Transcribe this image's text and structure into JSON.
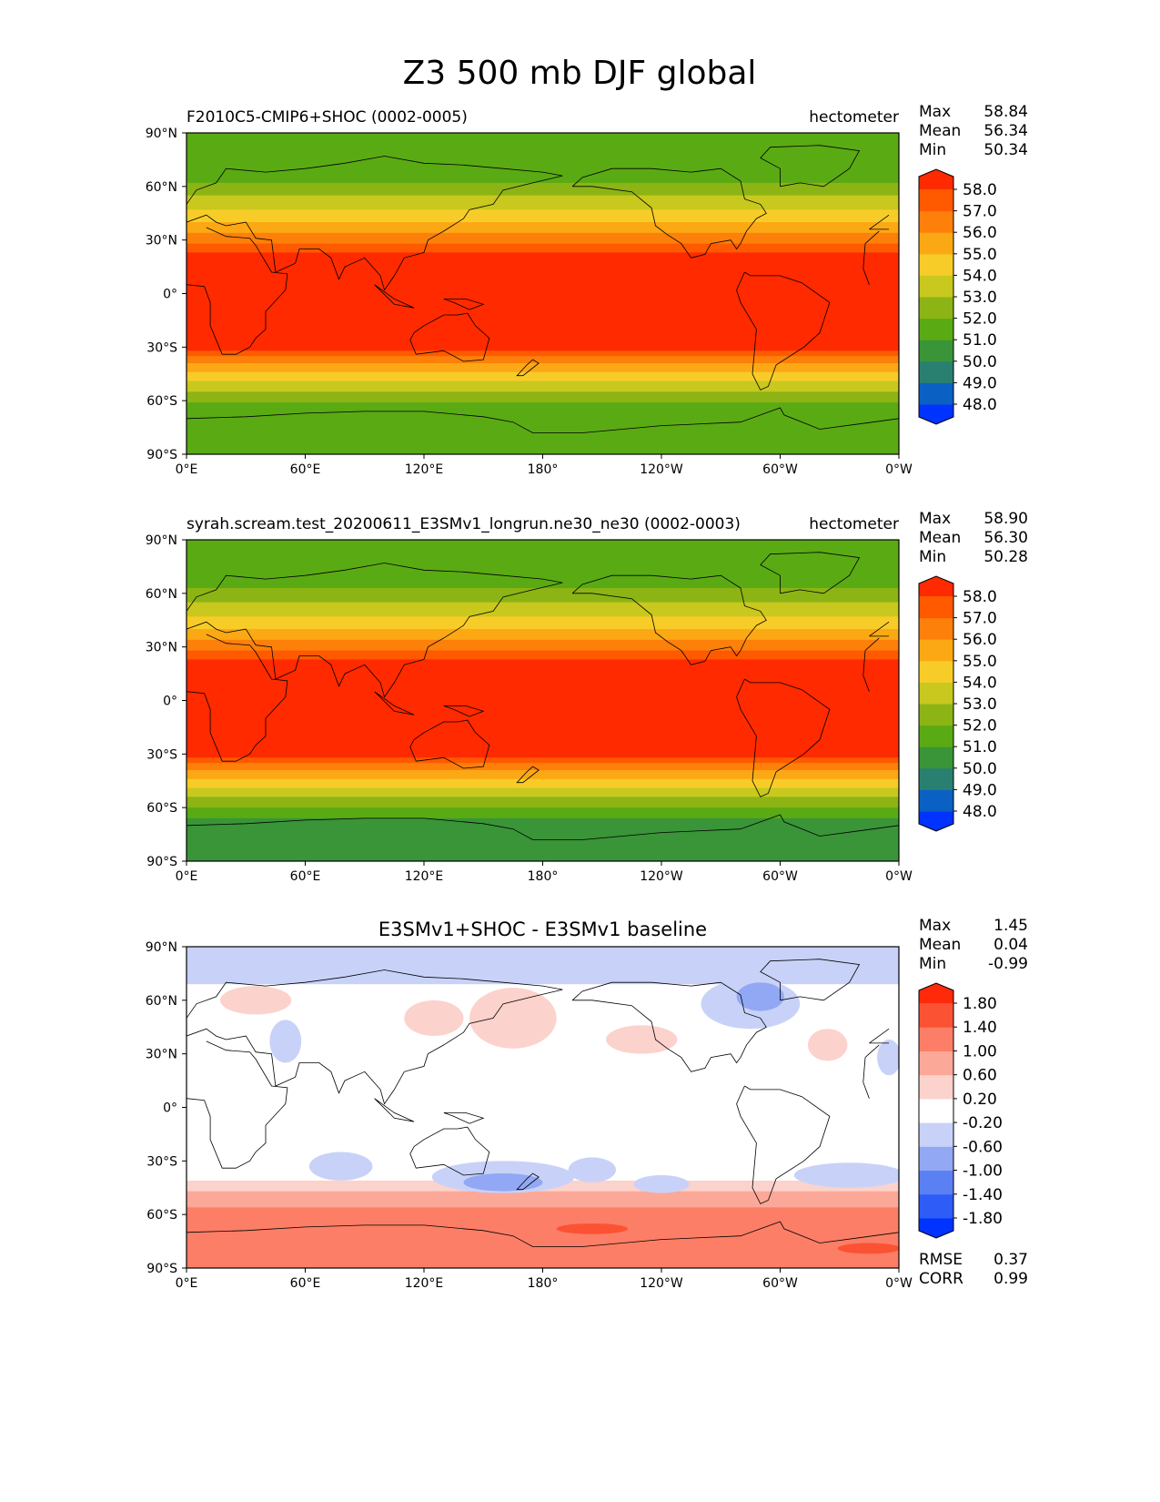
{
  "figure": {
    "title": "Z3 500 mb DJF global"
  },
  "chart_data": [
    {
      "type": "heatmap",
      "title": "F2010C5-CMIP6+SHOC (0002-0005)",
      "units": "hectometer",
      "stats": [
        {
          "label": "Max",
          "value": "58.84"
        },
        {
          "label": "Mean",
          "value": "56.34"
        },
        {
          "label": "Min",
          "value": "50.34"
        }
      ],
      "colorbar": {
        "ticks": [
          "48.0",
          "49.0",
          "50.0",
          "51.0",
          "52.0",
          "53.0",
          "54.0",
          "55.0",
          "56.0",
          "57.0",
          "58.0"
        ],
        "colors": [
          "#0033ff",
          "#0b60c4",
          "#2a8070",
          "#3a9438",
          "#5aaa14",
          "#8cb414",
          "#c8c81e",
          "#f8cc28",
          "#fca814",
          "#fc800a",
          "#ff5a00",
          "#ff2a00"
        ],
        "extend": "both"
      },
      "xticks": [
        "0°E",
        "60°E",
        "120°E",
        "180°",
        "120°W",
        "60°W",
        "0°W"
      ],
      "yticks": [
        "90°N",
        "60°N",
        "30°N",
        "0°",
        "30°S",
        "60°S",
        "90°S"
      ],
      "xlim": [
        0,
        360
      ],
      "ylim": [
        -90,
        90
      ],
      "profile": {
        "lat": [
          90,
          80,
          70,
          62,
          55,
          48,
          42,
          35,
          28,
          20,
          0,
          -20,
          -30,
          -35,
          -40,
          -45,
          -50,
          -55,
          -60,
          -65,
          -72,
          -80,
          -90
        ],
        "level": [
          4,
          4,
          3.8,
          4.5,
          5.5,
          6.3,
          7.2,
          8.3,
          9.5,
          11,
          11,
          11,
          11,
          9.5,
          8.3,
          7.2,
          6.2,
          5.5,
          4.6,
          3.8,
          4,
          4,
          4
        ]
      }
    },
    {
      "type": "heatmap",
      "title": "syrah.scream.test_20200611_E3SMv1_longrun.ne30_ne30 (0002-0003)",
      "units": "hectometer",
      "stats": [
        {
          "label": "Max",
          "value": "58.90"
        },
        {
          "label": "Mean",
          "value": "56.30"
        },
        {
          "label": "Min",
          "value": "50.28"
        }
      ],
      "colorbar": {
        "ticks": [
          "48.0",
          "49.0",
          "50.0",
          "51.0",
          "52.0",
          "53.0",
          "54.0",
          "55.0",
          "56.0",
          "57.0",
          "58.0"
        ],
        "colors": [
          "#0033ff",
          "#0b60c4",
          "#2a8070",
          "#3a9438",
          "#5aaa14",
          "#8cb414",
          "#c8c81e",
          "#f8cc28",
          "#fca814",
          "#fc800a",
          "#ff5a00",
          "#ff2a00"
        ],
        "extend": "both"
      },
      "xticks": [
        "0°E",
        "60°E",
        "120°E",
        "180°",
        "120°W",
        "60°W",
        "0°W"
      ],
      "yticks": [
        "90°N",
        "60°N",
        "30°N",
        "0°",
        "30°S",
        "60°S",
        "90°S"
      ],
      "xlim": [
        0,
        360
      ],
      "ylim": [
        -90,
        90
      ],
      "profile": {
        "lat": [
          90,
          80,
          70,
          62,
          55,
          48,
          42,
          35,
          28,
          20,
          0,
          -20,
          -30,
          -35,
          -40,
          -45,
          -50,
          -55,
          -60,
          -65,
          -72,
          -80,
          -90
        ],
        "level": [
          4.2,
          4.2,
          4,
          4.6,
          5.5,
          6.3,
          7.2,
          8.3,
          9.5,
          11,
          11,
          11,
          11,
          9.5,
          8.3,
          7.2,
          6.2,
          5.4,
          4.4,
          3.6,
          3,
          3,
          3
        ]
      }
    },
    {
      "type": "heatmap",
      "title": "E3SMv1+SHOC - E3SMv1 baseline",
      "units": "",
      "stats": [
        {
          "label": "Max",
          "value": "1.45"
        },
        {
          "label": "Mean",
          "value": "0.04"
        },
        {
          "label": "Min",
          "value": "-0.99"
        }
      ],
      "bottom_stats": [
        {
          "label": "RMSE",
          "value": "0.37"
        },
        {
          "label": "CORR",
          "value": "0.99"
        }
      ],
      "colorbar": {
        "ticks": [
          "-1.80",
          "-1.40",
          "-1.00",
          "-0.60",
          "-0.20",
          "0.20",
          "0.60",
          "1.00",
          "1.40",
          "1.80"
        ],
        "colors": [
          "#0033ff",
          "#2d5cf6",
          "#5a80f4",
          "#92a8f4",
          "#c8d2f8",
          "#ffffff",
          "#fcd2cc",
          "#fca898",
          "#fc7e66",
          "#fc5234",
          "#ff2a0a"
        ],
        "extend": "both"
      },
      "xticks": [
        "0°E",
        "60°E",
        "120°E",
        "180°",
        "120°W",
        "60°W",
        "0°W"
      ],
      "yticks": [
        "90°N",
        "60°N",
        "30°N",
        "0°",
        "30°S",
        "60°S",
        "90°S"
      ],
      "xlim": [
        0,
        360
      ],
      "ylim": [
        -90,
        90
      ],
      "profile": {
        "lat": [
          90,
          84,
          78,
          73,
          68,
          62,
          40,
          -30,
          -36,
          -41,
          -45,
          -50,
          -57,
          -62,
          -90
        ],
        "level": [
          4,
          4,
          4,
          4,
          4.6,
          5,
          5,
          5,
          5,
          5.5,
          6,
          7,
          7.6,
          8,
          8
        ]
      },
      "blobs": [
        {
          "lon": 35,
          "lat": 60,
          "rlon": 18,
          "rlat": 8,
          "level": 6
        },
        {
          "lon": 50,
          "lat": 37,
          "rlon": 8,
          "rlat": 12,
          "level": 4
        },
        {
          "lon": 125,
          "lat": 50,
          "rlon": 15,
          "rlat": 10,
          "level": 6
        },
        {
          "lon": 165,
          "lat": 50,
          "rlon": 22,
          "rlat": 17,
          "level": 6
        },
        {
          "lon": 230,
          "lat": 38,
          "rlon": 18,
          "rlat": 8,
          "level": 6
        },
        {
          "lon": 285,
          "lat": 58,
          "rlon": 25,
          "rlat": 14,
          "level": 4
        },
        {
          "lon": 290,
          "lat": 62,
          "rlon": 12,
          "rlat": 8,
          "level": 3
        },
        {
          "lon": 324,
          "lat": 35,
          "rlon": 10,
          "rlat": 9,
          "level": 6
        },
        {
          "lon": 355,
          "lat": 28,
          "rlon": 6,
          "rlat": 10,
          "level": 4
        },
        {
          "lon": 78,
          "lat": -33,
          "rlon": 16,
          "rlat": 8,
          "level": 4
        },
        {
          "lon": 160,
          "lat": -39,
          "rlon": 36,
          "rlat": 9,
          "level": 4
        },
        {
          "lon": 160,
          "lat": -42,
          "rlon": 20,
          "rlat": 5,
          "level": 3
        },
        {
          "lon": 205,
          "lat": -35,
          "rlon": 12,
          "rlat": 7,
          "level": 4
        },
        {
          "lon": 240,
          "lat": -43,
          "rlon": 14,
          "rlat": 5,
          "level": 4
        },
        {
          "lon": 335,
          "lat": -38,
          "rlon": 28,
          "rlat": 7,
          "level": 4
        },
        {
          "lon": 205,
          "lat": -68,
          "rlon": 18,
          "rlat": 3,
          "level": 9
        },
        {
          "lon": 345,
          "lat": -79,
          "rlon": 16,
          "rlat": 3,
          "level": 9
        }
      ]
    }
  ]
}
